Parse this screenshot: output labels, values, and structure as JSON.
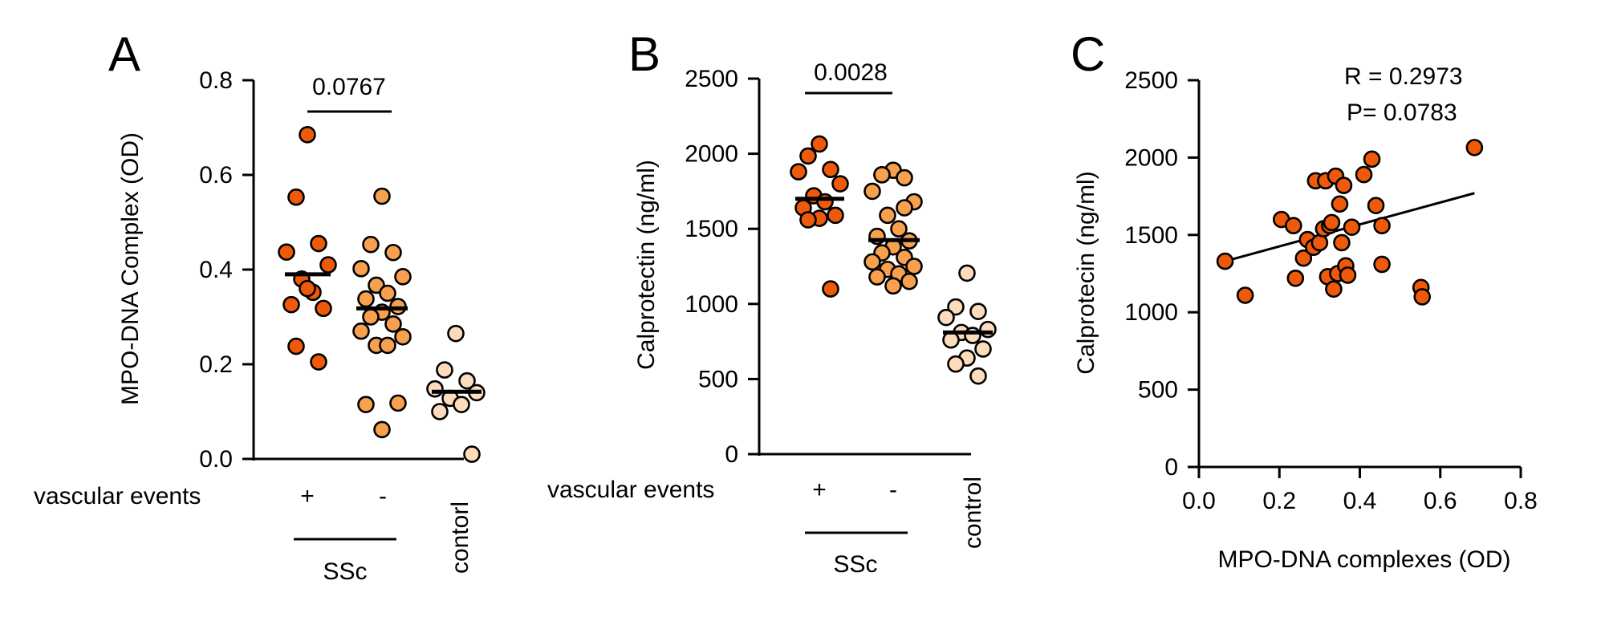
{
  "colors": {
    "ssc_plus": "#ee5a0a",
    "ssc_minus": "#f7a04e",
    "control": "#fcdcba",
    "scatter": "#ee5a0a"
  },
  "chart_data": [
    {
      "panel": "A",
      "type": "scatter",
      "title": "",
      "ylabel": "MPO-DNA Complex (OD)",
      "xlabel": "",
      "ylim": [
        0,
        0.8
      ],
      "yticks": [
        "0.0",
        "0.2",
        "0.4",
        "0.6",
        "0.8"
      ],
      "ytick_values": [
        0.0,
        0.2,
        0.4,
        0.6,
        0.8
      ],
      "row_label": "vascular events",
      "group_label": "SSc",
      "comparison": {
        "text": "0.0767",
        "from": 0,
        "to": 1
      },
      "categories": [
        "+",
        "-",
        "contorl"
      ],
      "series": [
        {
          "name": "+",
          "mean": 0.39,
          "values": [
            0.685,
            0.553,
            0.455,
            0.437,
            0.41,
            0.38,
            0.352,
            0.326,
            0.318,
            0.36,
            0.238,
            0.205
          ]
        },
        {
          "name": "-",
          "mean": 0.318,
          "values": [
            0.555,
            0.453,
            0.436,
            0.402,
            0.385,
            0.367,
            0.35,
            0.338,
            0.322,
            0.31,
            0.3,
            0.285,
            0.27,
            0.258,
            0.24,
            0.24,
            0.115,
            0.118,
            0.062
          ]
        },
        {
          "name": "contorl",
          "mean": 0.142,
          "values": [
            0.265,
            0.188,
            0.165,
            0.148,
            0.14,
            0.128,
            0.115,
            0.1,
            0.01
          ]
        }
      ]
    },
    {
      "panel": "B",
      "type": "scatter",
      "title": "",
      "ylabel": "Calprotectin (ng/ml)",
      "xlabel": "",
      "ylim": [
        0,
        2500
      ],
      "yticks": [
        "0",
        "500",
        "1000",
        "1500",
        "2000",
        "2500"
      ],
      "ytick_values": [
        0,
        500,
        1000,
        1500,
        2000,
        2500
      ],
      "row_label": "vascular events",
      "group_label": "SSc",
      "comparison": {
        "text": "0.0028",
        "from": 0,
        "to": 1
      },
      "categories": [
        "+",
        "-",
        "control"
      ],
      "series": [
        {
          "name": "+",
          "mean": 1700,
          "values": [
            2065,
            1985,
            1895,
            1880,
            1800,
            1720,
            1680,
            1640,
            1590,
            1570,
            1560,
            1100
          ]
        },
        {
          "name": "-",
          "mean": 1425,
          "values": [
            1890,
            1860,
            1840,
            1750,
            1680,
            1590,
            1500,
            1450,
            1420,
            1380,
            1340,
            1310,
            1280,
            1250,
            1230,
            1200,
            1180,
            1150,
            1120,
            1860,
            1640
          ]
        },
        {
          "name": "control",
          "mean": 810,
          "values": [
            1205,
            980,
            950,
            910,
            830,
            810,
            790,
            760,
            700,
            640,
            600,
            520
          ]
        }
      ]
    },
    {
      "panel": "C",
      "type": "scatter",
      "title": "",
      "xlabel": "MPO-DNA complexes (OD)",
      "ylabel": "Calprotecin (ng/ml)",
      "xlim": [
        0,
        0.8
      ],
      "ylim": [
        0,
        2500
      ],
      "xticks": [
        "0.0",
        "0.2",
        "0.4",
        "0.6",
        "0.8"
      ],
      "xtick_values": [
        0.0,
        0.2,
        0.4,
        0.6,
        0.8
      ],
      "yticks": [
        "0",
        "500",
        "1000",
        "1500",
        "2000",
        "2500"
      ],
      "ytick_values": [
        0,
        500,
        1000,
        1500,
        2000,
        2500
      ],
      "stats": {
        "r": "R = 0.2973",
        "p": "P= 0.0783"
      },
      "fit": {
        "x": [
          0.065,
          0.685
        ],
        "y": [
          1330,
          1770
        ]
      },
      "points": {
        "x": [
          0.065,
          0.115,
          0.205,
          0.235,
          0.24,
          0.26,
          0.27,
          0.285,
          0.29,
          0.3,
          0.31,
          0.315,
          0.32,
          0.325,
          0.33,
          0.335,
          0.34,
          0.345,
          0.35,
          0.355,
          0.36,
          0.365,
          0.37,
          0.38,
          0.41,
          0.43,
          0.44,
          0.455,
          0.455,
          0.552,
          0.555,
          0.685
        ],
        "y": [
          1330,
          1110,
          1600,
          1560,
          1220,
          1350,
          1470,
          1420,
          1850,
          1450,
          1540,
          1850,
          1230,
          1560,
          1580,
          1150,
          1880,
          1250,
          1700,
          1450,
          1820,
          1300,
          1240,
          1550,
          1890,
          1990,
          1690,
          1310,
          1560,
          1160,
          1100,
          2065
        ]
      }
    }
  ]
}
